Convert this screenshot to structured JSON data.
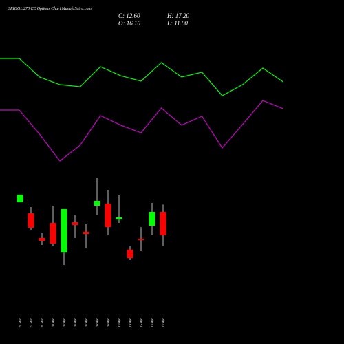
{
  "chart_data": {
    "type": "candlestick",
    "title": "SRIGOL 270 CE Options Chart MunafaSutra.com",
    "header": [
      "C: 12.60",
      "H: 17.20",
      "O: 16.10",
      "L: 11.00"
    ],
    "categories": [
      "25 Mar",
      "27 Mar",
      "30 Mar",
      "01 Apr",
      "02 Apr",
      "06 Apr",
      "07 Apr",
      "08 Apr",
      "09 Apr",
      "10 Apr",
      "13 Apr",
      "15 Apr",
      "16 Apr",
      "17 Apr"
    ],
    "open": [
      17.54,
      15.89,
      12.19,
      14.45,
      10.02,
      14.56,
      13.11,
      17.03,
      17.34,
      14.97,
      10.44,
      12.08,
      14.04,
      16.1
    ],
    "high": [
      18.67,
      16.82,
      13.01,
      16.92,
      16.51,
      15.59,
      14.35,
      21.15,
      19.4,
      18.67,
      10.95,
      13.83,
      17.44,
      17.2
    ],
    "low": [
      17.54,
      13.32,
      11.16,
      10.95,
      8.17,
      12.19,
      10.64,
      15.69,
      12.6,
      14.45,
      8.89,
      10.23,
      12.7,
      11.0
    ],
    "close": [
      18.67,
      13.73,
      11.77,
      11.36,
      16.51,
      14.14,
      12.8,
      17.75,
      13.83,
      15.28,
      9.2,
      11.88,
      16.1,
      12.6
    ],
    "up_color": "#00ff00",
    "down_color": "#ff0000",
    "series": [
      {
        "color": "#00ff00",
        "values": [
          39.07,
          36.29,
          35.15,
          34.84,
          37.83,
          36.49,
          35.67,
          38.45,
          36.29,
          37.01,
          33.5,
          35.15,
          37.62,
          35.56
        ]
      },
      {
        "color": "#cc00cc",
        "values": [
          31.34,
          27.74,
          23.72,
          26.09,
          30.52,
          29.08,
          27.94,
          31.65,
          29.08,
          30.42,
          25.68,
          29.18,
          32.78,
          31.55
        ]
      }
    ],
    "ylim": [
      -3.67,
      47.82
    ]
  }
}
